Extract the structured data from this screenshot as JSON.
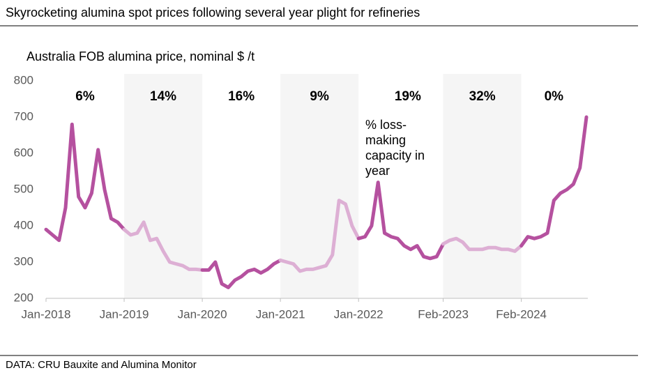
{
  "chart_data": {
    "type": "line",
    "title": "Skyrocketing alumina spot prices following several year plight for refineries",
    "subtitle": "Australia FOB alumina price, nominal $ /t",
    "source": "DATA: CRU Bauxite and Alumina Monitor",
    "annotation_lines": [
      "% loss-",
      "making",
      "capacity in",
      "year"
    ],
    "line_color": "#b5519f",
    "line_color_shaded": "#ddafd4",
    "band_color": "#f5f5f5",
    "x": [
      "2018-01",
      "2018-02",
      "2018-03",
      "2018-04",
      "2018-05",
      "2018-06",
      "2018-07",
      "2018-08",
      "2018-09",
      "2018-10",
      "2018-11",
      "2018-12",
      "2019-01",
      "2019-02",
      "2019-03",
      "2019-04",
      "2019-05",
      "2019-06",
      "2019-07",
      "2019-08",
      "2019-09",
      "2019-10",
      "2019-11",
      "2019-12",
      "2020-01",
      "2020-02",
      "2020-03",
      "2020-04",
      "2020-05",
      "2020-06",
      "2020-07",
      "2020-08",
      "2020-09",
      "2020-10",
      "2020-11",
      "2020-12",
      "2021-01",
      "2021-02",
      "2021-03",
      "2021-04",
      "2021-05",
      "2021-06",
      "2021-07",
      "2021-08",
      "2021-09",
      "2021-10",
      "2021-11",
      "2021-12",
      "2022-01",
      "2022-02",
      "2022-03",
      "2022-04",
      "2022-05",
      "2022-06",
      "2022-07",
      "2022-08",
      "2022-09",
      "2022-10",
      "2022-11",
      "2022-12",
      "2023-01",
      "2023-02",
      "2023-03",
      "2023-04",
      "2023-05",
      "2023-06",
      "2023-07",
      "2023-08",
      "2023-09",
      "2023-10",
      "2023-11",
      "2023-12",
      "2024-01",
      "2024-02",
      "2024-03",
      "2024-04",
      "2024-05",
      "2024-06",
      "2024-07",
      "2024-08",
      "2024-09",
      "2024-10",
      "2024-11",
      "2024-12"
    ],
    "values": [
      390,
      375,
      360,
      450,
      680,
      480,
      450,
      490,
      610,
      500,
      420,
      410,
      390,
      375,
      380,
      410,
      360,
      365,
      330,
      300,
      295,
      290,
      280,
      280,
      278,
      278,
      300,
      240,
      230,
      250,
      260,
      275,
      280,
      270,
      280,
      295,
      305,
      300,
      295,
      275,
      280,
      280,
      285,
      290,
      320,
      470,
      460,
      400,
      365,
      370,
      400,
      520,
      380,
      370,
      365,
      345,
      335,
      345,
      315,
      310,
      315,
      350,
      360,
      365,
      355,
      335,
      335,
      335,
      340,
      340,
      335,
      335,
      330,
      345,
      370,
      365,
      370,
      380,
      470,
      490,
      500,
      515,
      560,
      700
    ],
    "periods": [
      {
        "start": "2018-01",
        "end": "2019-01",
        "label": "6%",
        "shaded": false
      },
      {
        "start": "2019-01",
        "end": "2020-01",
        "label": "14%",
        "shaded": true
      },
      {
        "start": "2020-01",
        "end": "2021-01",
        "label": "16%",
        "shaded": false
      },
      {
        "start": "2021-01",
        "end": "2022-01",
        "label": "9%",
        "shaded": true
      },
      {
        "start": "2022-01",
        "end": "2023-02",
        "label": "19%",
        "shaded": false
      },
      {
        "start": "2023-02",
        "end": "2024-02",
        "label": "32%",
        "shaded": true
      },
      {
        "start": "2024-02",
        "end": "2024-12",
        "label": "0%",
        "shaded": false
      }
    ],
    "xlim": [
      "2018-01",
      "2024-12"
    ],
    "xticks": [
      {
        "value": "2018-01",
        "label": "Jan-2018"
      },
      {
        "value": "2019-01",
        "label": "Jan-2019"
      },
      {
        "value": "2020-01",
        "label": "Jan-2020"
      },
      {
        "value": "2021-01",
        "label": "Jan-2021"
      },
      {
        "value": "2022-01",
        "label": "Jan-2022"
      },
      {
        "value": "2023-02",
        "label": "Feb-2023"
      },
      {
        "value": "2024-02",
        "label": "Feb-2024"
      }
    ],
    "ylim": [
      200,
      800
    ],
    "yticks": [
      200,
      300,
      400,
      500,
      600,
      700,
      800
    ],
    "grid": false
  }
}
